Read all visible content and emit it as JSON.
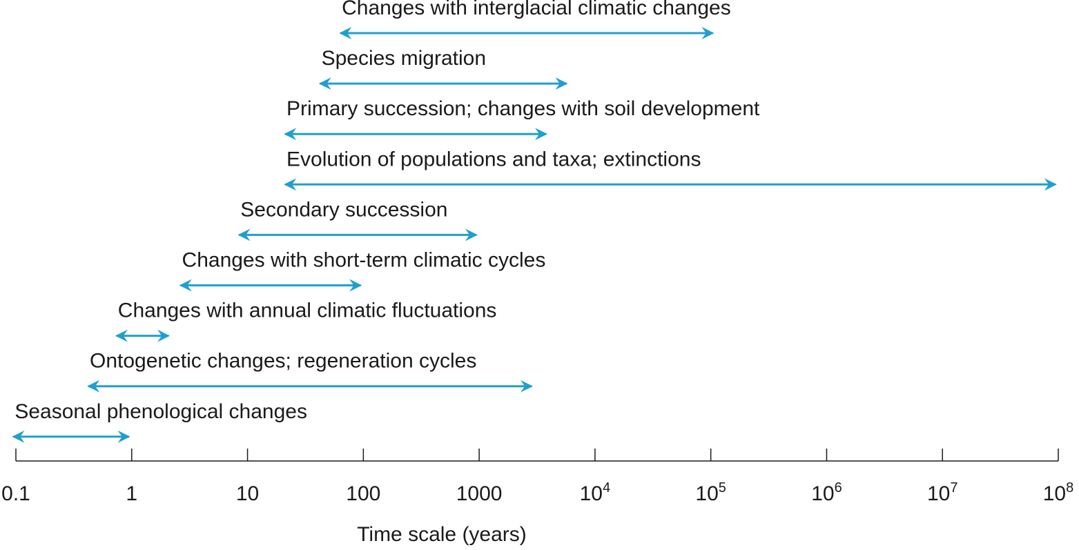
{
  "colors": {
    "arrow": "#1f9fd0",
    "axis": "#1a1a1a",
    "text": "#1a1a1a"
  },
  "chart_data": {
    "type": "range-arrows",
    "xscale": "log",
    "xlim": [
      0.1,
      100000000
    ],
    "grid": false,
    "xlabel": "Time scale (years)",
    "ticks": [
      {
        "value": 0.1,
        "base": "0.1",
        "exp": ""
      },
      {
        "value": 1,
        "base": "1",
        "exp": ""
      },
      {
        "value": 10,
        "base": "10",
        "exp": ""
      },
      {
        "value": 100,
        "base": "100",
        "exp": ""
      },
      {
        "value": 1000,
        "base": "1000",
        "exp": ""
      },
      {
        "value": 10000,
        "base": "10",
        "exp": "4"
      },
      {
        "value": 100000,
        "base": "10",
        "exp": "5"
      },
      {
        "value": 1000000,
        "base": "10",
        "exp": "6"
      },
      {
        "value": 10000000,
        "base": "10",
        "exp": "7"
      },
      {
        "value": 100000000,
        "base": "10",
        "exp": "8"
      }
    ],
    "series": [
      {
        "name": "Changes with interglacial climatic changes",
        "start": 60,
        "end": 110000
      },
      {
        "name": "Species migration",
        "start": 40,
        "end": 6000
      },
      {
        "name": "Primary succession; changes with soil development",
        "start": 20,
        "end": 4000
      },
      {
        "name": "Evolution of populations and taxa; extinctions",
        "start": 20,
        "end": 100000000
      },
      {
        "name": "Secondary succession",
        "start": 8,
        "end": 1000
      },
      {
        "name": "Changes with short-term climatic cycles",
        "start": 2.5,
        "end": 100
      },
      {
        "name": "Changes with annual climatic fluctuations",
        "start": 0.7,
        "end": 2.2
      },
      {
        "name": "Ontogenetic changes; regeneration cycles",
        "start": 0.4,
        "end": 3000
      },
      {
        "name": "Seasonal phenological changes",
        "start": 0.09,
        "end": 1
      }
    ]
  }
}
